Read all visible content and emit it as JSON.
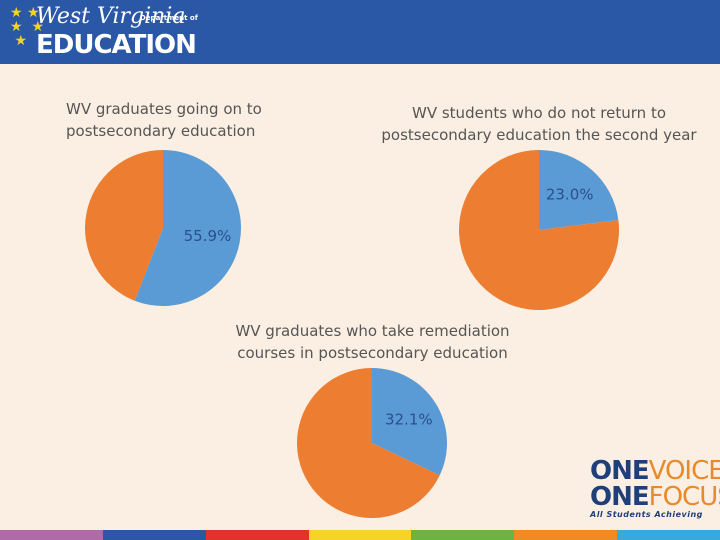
{
  "header": {
    "logo_script": "West Virginia",
    "logo_dept": "Department of",
    "logo_main": "EDUCATION"
  },
  "footer": {
    "one_1": "ONE",
    "voice": "VOICE",
    "one_2": "ONE",
    "focus": "FOCUS",
    "tagline": "All Students Achieving"
  },
  "chart_data": [
    {
      "type": "pie",
      "title": "WV graduates going on to postsecondary education",
      "values": [
        55.9,
        44.1
      ],
      "value_labels": [
        "55.9%",
        null
      ],
      "colors": [
        "#5b9bd5",
        "#ed7d31"
      ]
    },
    {
      "type": "pie",
      "title": "WV students who do not return to postsecondary education the second year",
      "values": [
        23.0,
        77.0
      ],
      "value_labels": [
        "23.0%",
        null
      ],
      "colors": [
        "#5b9bd5",
        "#ed7d31"
      ]
    },
    {
      "type": "pie",
      "title": "WV graduates who take remediation courses in postsecondary education",
      "values": [
        32.1,
        67.9
      ],
      "value_labels": [
        "32.1%",
        null
      ],
      "colors": [
        "#5b9bd5",
        "#ed7d31"
      ]
    }
  ]
}
